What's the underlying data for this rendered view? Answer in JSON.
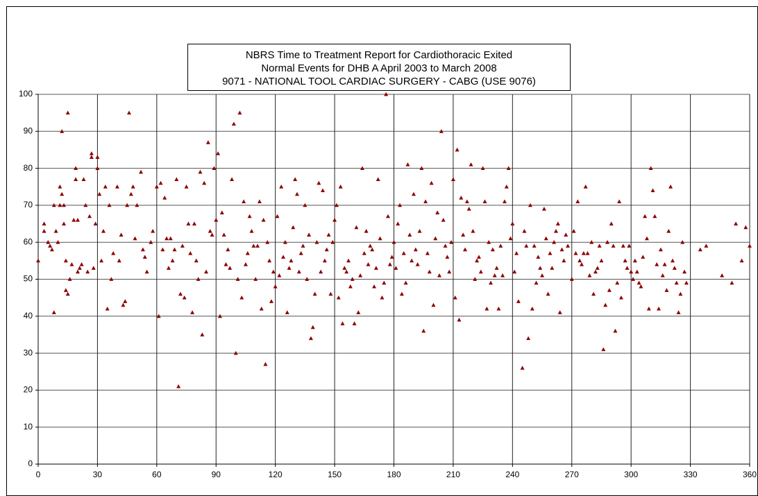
{
  "chart_data": {
    "type": "scatter",
    "title": [
      "NBRS Time to Treatment Report for Cardiothoracic Exited",
      "Normal Events for DHB A April 2003 to March 2008",
      "9071 - NATIONAL TOOL CARDIAC SURGERY - CABG (USE 9076)"
    ],
    "color": "#8b0000",
    "xlim": [
      0,
      360
    ],
    "xticks": [
      0,
      30,
      60,
      90,
      120,
      150,
      180,
      210,
      240,
      270,
      300,
      330,
      360
    ],
    "ylim": [
      0,
      100
    ],
    "yticks": [
      0,
      10,
      20,
      30,
      40,
      50,
      60,
      70,
      80,
      90,
      100
    ],
    "grid": true,
    "points": [
      [
        0,
        55
      ],
      [
        3,
        65
      ],
      [
        3,
        63
      ],
      [
        5,
        60
      ],
      [
        6,
        59
      ],
      [
        7,
        58
      ],
      [
        8,
        41
      ],
      [
        8,
        70
      ],
      [
        9,
        63
      ],
      [
        10,
        60
      ],
      [
        11,
        75
      ],
      [
        11,
        70
      ],
      [
        12,
        90
      ],
      [
        12,
        73
      ],
      [
        13,
        65
      ],
      [
        13,
        70
      ],
      [
        14,
        47
      ],
      [
        14,
        55
      ],
      [
        15,
        46
      ],
      [
        15,
        95
      ],
      [
        16,
        50
      ],
      [
        17,
        54
      ],
      [
        18,
        66
      ],
      [
        19,
        80
      ],
      [
        19,
        77
      ],
      [
        20,
        66
      ],
      [
        21,
        53
      ],
      [
        22,
        54
      ],
      [
        23,
        77
      ],
      [
        24,
        70
      ],
      [
        25,
        52
      ],
      [
        26,
        67
      ],
      [
        27,
        84
      ],
      [
        27,
        83
      ],
      [
        28,
        53
      ],
      [
        29,
        65
      ],
      [
        30,
        80
      ],
      [
        30,
        83
      ],
      [
        31,
        73
      ],
      [
        32,
        55
      ],
      [
        33,
        63
      ],
      [
        34,
        75
      ],
      [
        35,
        42
      ],
      [
        36,
        70
      ],
      [
        38,
        57
      ],
      [
        40,
        75
      ],
      [
        42,
        62
      ],
      [
        43,
        43
      ],
      [
        44,
        44
      ],
      [
        45,
        70
      ],
      [
        46,
        95
      ],
      [
        47,
        73
      ],
      [
        48,
        75
      ],
      [
        49,
        61
      ],
      [
        50,
        70
      ],
      [
        52,
        79
      ],
      [
        53,
        58
      ],
      [
        55,
        52
      ],
      [
        57,
        60
      ],
      [
        60,
        75
      ],
      [
        61,
        40
      ],
      [
        62,
        76
      ],
      [
        64,
        72
      ],
      [
        65,
        61
      ],
      [
        67,
        61
      ],
      [
        68,
        55
      ],
      [
        70,
        77
      ],
      [
        71,
        21
      ],
      [
        72,
        46
      ],
      [
        73,
        59
      ],
      [
        74,
        45
      ],
      [
        75,
        75
      ],
      [
        76,
        65
      ],
      [
        77,
        57
      ],
      [
        78,
        41
      ],
      [
        79,
        65
      ],
      [
        80,
        55
      ],
      [
        82,
        79
      ],
      [
        83,
        35
      ],
      [
        84,
        76
      ],
      [
        85,
        52
      ],
      [
        86,
        87
      ],
      [
        87,
        63
      ],
      [
        88,
        62
      ],
      [
        89,
        80
      ],
      [
        90,
        66
      ],
      [
        91,
        84
      ],
      [
        92,
        40
      ],
      [
        93,
        68
      ],
      [
        95,
        54
      ],
      [
        97,
        53
      ],
      [
        98,
        77
      ],
      [
        99,
        92
      ],
      [
        100,
        30
      ],
      [
        101,
        50
      ],
      [
        102,
        95
      ],
      [
        103,
        45
      ],
      [
        104,
        71
      ],
      [
        105,
        54
      ],
      [
        107,
        67
      ],
      [
        108,
        63
      ],
      [
        110,
        50
      ],
      [
        111,
        59
      ],
      [
        112,
        71
      ],
      [
        113,
        42
      ],
      [
        114,
        66
      ],
      [
        115,
        27
      ],
      [
        116,
        60
      ],
      [
        118,
        44
      ],
      [
        120,
        48
      ],
      [
        121,
        67
      ],
      [
        122,
        51
      ],
      [
        123,
        75
      ],
      [
        124,
        56
      ],
      [
        125,
        60
      ],
      [
        126,
        41
      ],
      [
        127,
        53
      ],
      [
        128,
        55
      ],
      [
        129,
        64
      ],
      [
        130,
        77
      ],
      [
        131,
        73
      ],
      [
        132,
        52
      ],
      [
        134,
        59
      ],
      [
        135,
        70
      ],
      [
        136,
        50
      ],
      [
        137,
        62
      ],
      [
        138,
        34
      ],
      [
        139,
        37
      ],
      [
        140,
        46
      ],
      [
        141,
        60
      ],
      [
        142,
        76
      ],
      [
        143,
        52
      ],
      [
        144,
        74
      ],
      [
        145,
        55
      ],
      [
        146,
        58
      ],
      [
        147,
        62
      ],
      [
        148,
        46
      ],
      [
        150,
        66
      ],
      [
        151,
        70
      ],
      [
        152,
        45
      ],
      [
        153,
        75
      ],
      [
        154,
        38
      ],
      [
        155,
        53
      ],
      [
        157,
        55
      ],
      [
        158,
        48
      ],
      [
        160,
        38
      ],
      [
        161,
        64
      ],
      [
        162,
        41
      ],
      [
        163,
        51
      ],
      [
        164,
        80
      ],
      [
        165,
        57
      ],
      [
        166,
        63
      ],
      [
        167,
        54
      ],
      [
        168,
        59
      ],
      [
        170,
        48
      ],
      [
        172,
        77
      ],
      [
        173,
        61
      ],
      [
        174,
        45
      ],
      [
        175,
        49
      ],
      [
        176,
        100
      ],
      [
        177,
        67
      ],
      [
        178,
        54
      ],
      [
        180,
        60
      ],
      [
        181,
        53
      ],
      [
        182,
        65
      ],
      [
        183,
        70
      ],
      [
        184,
        46
      ],
      [
        185,
        57
      ],
      [
        186,
        49
      ],
      [
        187,
        81
      ],
      [
        188,
        62
      ],
      [
        189,
        55
      ],
      [
        190,
        73
      ],
      [
        192,
        54
      ],
      [
        194,
        80
      ],
      [
        195,
        36
      ],
      [
        196,
        71
      ],
      [
        197,
        57
      ],
      [
        198,
        52
      ],
      [
        199,
        76
      ],
      [
        200,
        43
      ],
      [
        201,
        61
      ],
      [
        202,
        68
      ],
      [
        203,
        51
      ],
      [
        204,
        90
      ],
      [
        205,
        66
      ],
      [
        207,
        56
      ],
      [
        208,
        52
      ],
      [
        209,
        60
      ],
      [
        210,
        77
      ],
      [
        211,
        45
      ],
      [
        212,
        85
      ],
      [
        213,
        39
      ],
      [
        214,
        72
      ],
      [
        215,
        62
      ],
      [
        216,
        58
      ],
      [
        217,
        71
      ],
      [
        218,
        69
      ],
      [
        219,
        81
      ],
      [
        220,
        63
      ],
      [
        221,
        50
      ],
      [
        222,
        55
      ],
      [
        224,
        52
      ],
      [
        225,
        80
      ],
      [
        226,
        71
      ],
      [
        227,
        42
      ],
      [
        228,
        60
      ],
      [
        229,
        49
      ],
      [
        230,
        58
      ],
      [
        232,
        53
      ],
      [
        233,
        42
      ],
      [
        234,
        59
      ],
      [
        235,
        51
      ],
      [
        236,
        71
      ],
      [
        237,
        75
      ],
      [
        238,
        80
      ],
      [
        239,
        61
      ],
      [
        240,
        65
      ],
      [
        241,
        52
      ],
      [
        243,
        44
      ],
      [
        245,
        26
      ],
      [
        246,
        63
      ],
      [
        247,
        59
      ],
      [
        248,
        34
      ],
      [
        249,
        70
      ],
      [
        250,
        42
      ],
      [
        251,
        59
      ],
      [
        253,
        56
      ],
      [
        255,
        51
      ],
      [
        256,
        69
      ],
      [
        257,
        61
      ],
      [
        258,
        46
      ],
      [
        260,
        53
      ],
      [
        262,
        63
      ],
      [
        263,
        65
      ],
      [
        264,
        41
      ],
      [
        265,
        58
      ],
      [
        266,
        55
      ],
      [
        267,
        62
      ],
      [
        270,
        50
      ],
      [
        271,
        63
      ],
      [
        272,
        57
      ],
      [
        273,
        71
      ],
      [
        274,
        55
      ],
      [
        276,
        57
      ],
      [
        277,
        75
      ],
      [
        279,
        51
      ],
      [
        280,
        60
      ],
      [
        281,
        46
      ],
      [
        283,
        53
      ],
      [
        285,
        55
      ],
      [
        286,
        31
      ],
      [
        287,
        43
      ],
      [
        288,
        60
      ],
      [
        290,
        65
      ],
      [
        291,
        59
      ],
      [
        292,
        36
      ],
      [
        293,
        49
      ],
      [
        294,
        71
      ],
      [
        295,
        45
      ],
      [
        296,
        59
      ],
      [
        298,
        53
      ],
      [
        299,
        59
      ],
      [
        300,
        52
      ],
      [
        301,
        50
      ],
      [
        302,
        55
      ],
      [
        305,
        48
      ],
      [
        307,
        67
      ],
      [
        308,
        61
      ],
      [
        309,
        42
      ],
      [
        310,
        80
      ],
      [
        311,
        74
      ],
      [
        312,
        67
      ],
      [
        313,
        54
      ],
      [
        314,
        42
      ],
      [
        316,
        51
      ],
      [
        318,
        47
      ],
      [
        319,
        63
      ],
      [
        320,
        75
      ],
      [
        321,
        55
      ],
      [
        322,
        53
      ],
      [
        323,
        49
      ],
      [
        324,
        41
      ],
      [
        325,
        46
      ],
      [
        326,
        60
      ],
      [
        327,
        52
      ],
      [
        328,
        49
      ],
      [
        335,
        58
      ],
      [
        338,
        59
      ],
      [
        346,
        51
      ],
      [
        351,
        49
      ],
      [
        353,
        65
      ],
      [
        356,
        55
      ],
      [
        358,
        64
      ],
      [
        360,
        59
      ],
      [
        20,
        52
      ],
      [
        37,
        50
      ],
      [
        41,
        55
      ],
      [
        54,
        56
      ],
      [
        58,
        63
      ],
      [
        63,
        58
      ],
      [
        66,
        53
      ],
      [
        69,
        58
      ],
      [
        81,
        50
      ],
      [
        94,
        62
      ],
      [
        96,
        58
      ],
      [
        106,
        57
      ],
      [
        109,
        59
      ],
      [
        117,
        55
      ],
      [
        119,
        52
      ],
      [
        133,
        57
      ],
      [
        149,
        60
      ],
      [
        156,
        52
      ],
      [
        159,
        50
      ],
      [
        169,
        58
      ],
      [
        171,
        53
      ],
      [
        179,
        56
      ],
      [
        191,
        58
      ],
      [
        193,
        63
      ],
      [
        206,
        59
      ],
      [
        223,
        56
      ],
      [
        231,
        51
      ],
      [
        242,
        57
      ],
      [
        252,
        49
      ],
      [
        254,
        53
      ],
      [
        259,
        57
      ],
      [
        261,
        60
      ],
      [
        268,
        59
      ],
      [
        275,
        54
      ],
      [
        278,
        57
      ],
      [
        282,
        52
      ],
      [
        284,
        59
      ],
      [
        289,
        47
      ],
      [
        297,
        55
      ],
      [
        303,
        52
      ],
      [
        304,
        49
      ],
      [
        306,
        56
      ],
      [
        315,
        58
      ],
      [
        317,
        54
      ]
    ]
  }
}
